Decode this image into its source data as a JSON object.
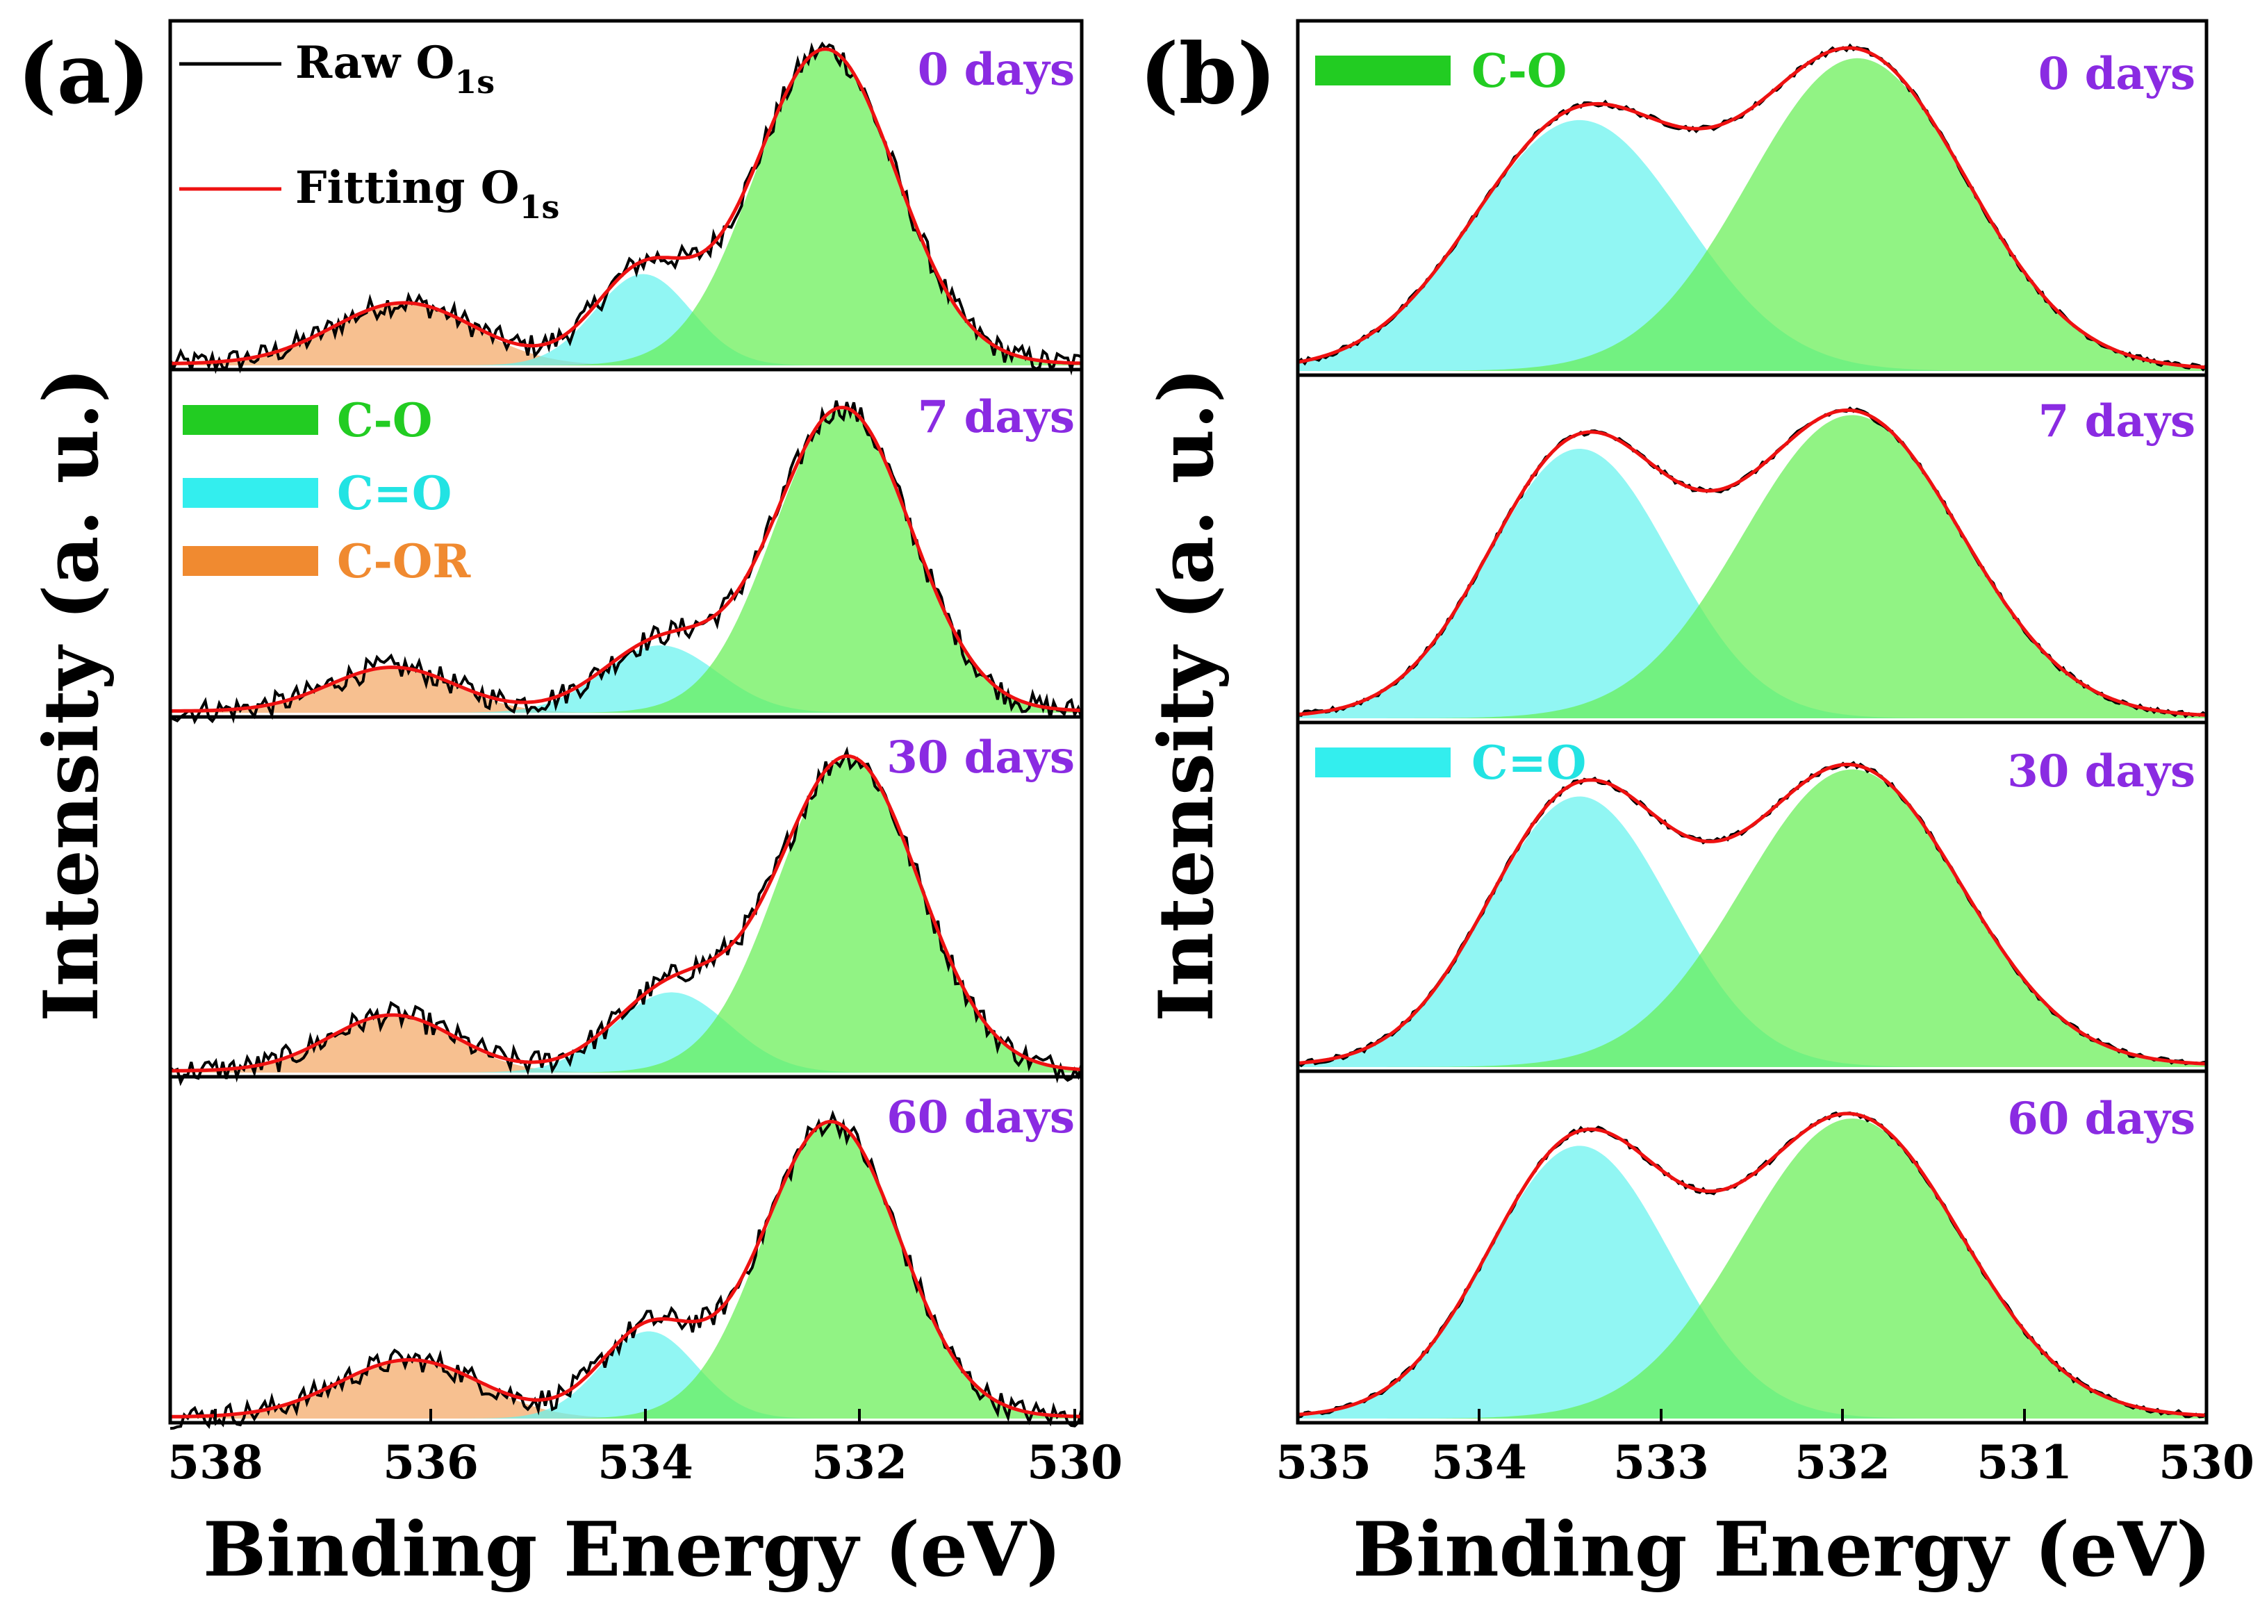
{
  "colors": {
    "co_fill": "#66ee55",
    "cdo_fill": "#66f2ee",
    "cor_fill": "#f4a765",
    "raw_line": "#000000",
    "fit_line": "#ee1111",
    "days_label": "#8a2be2",
    "co_text": "#22cc22",
    "cdo_text": "#22e3e3",
    "cor_text": "#f08a30"
  },
  "chart_data": [
    {
      "id": "a",
      "type": "area",
      "panel_label": "(a)",
      "xlabel": "Binding Energy (eV)",
      "ylabel": "Intensity (a. u.)",
      "xlim": [
        538,
        530
      ],
      "ylim": [
        0,
        1
      ],
      "x_ticks": [
        "538",
        "536",
        "534",
        "532",
        "530"
      ],
      "legend": {
        "raw": {
          "label": "Raw O",
          "sub": "1s"
        },
        "fit": {
          "label": "Fitting O",
          "sub": "1s"
        },
        "co": "C-O",
        "cdo": "C=O",
        "cor": "C-OR"
      },
      "subplots": [
        {
          "days": "0 days",
          "peaks": [
            {
              "name": "C-O",
              "center": 532.25,
              "height": 0.93,
              "sigma": 0.62
            },
            {
              "name": "C=O",
              "center": 533.85,
              "height": 0.27,
              "sigma": 0.42
            },
            {
              "name": "C-OR",
              "center": 535.95,
              "height": 0.18,
              "sigma": 0.62
            }
          ]
        },
        {
          "days": "7 days",
          "peaks": [
            {
              "name": "C-O",
              "center": 532.1,
              "height": 0.9,
              "sigma": 0.6
            },
            {
              "name": "C=O",
              "center": 533.7,
              "height": 0.2,
              "sigma": 0.5
            },
            {
              "name": "C-OR",
              "center": 536.05,
              "height": 0.13,
              "sigma": 0.55
            }
          ]
        },
        {
          "days": "30 days",
          "peaks": [
            {
              "name": "C-O",
              "center": 532.05,
              "height": 0.9,
              "sigma": 0.62
            },
            {
              "name": "C=O",
              "center": 533.6,
              "height": 0.23,
              "sigma": 0.5
            },
            {
              "name": "C-OR",
              "center": 536.05,
              "height": 0.16,
              "sigma": 0.55
            }
          ]
        },
        {
          "days": "60 days",
          "peaks": [
            {
              "name": "C-O",
              "center": 532.2,
              "height": 0.88,
              "sigma": 0.6
            },
            {
              "name": "C=O",
              "center": 533.8,
              "height": 0.26,
              "sigma": 0.42
            },
            {
              "name": "C-OR",
              "center": 535.9,
              "height": 0.17,
              "sigma": 0.62
            }
          ]
        }
      ]
    },
    {
      "id": "b",
      "type": "area",
      "panel_label": "(b)",
      "xlabel": "Binding Energy (eV)",
      "ylabel": "Intensity (a. u.)",
      "xlim": [
        535,
        530
      ],
      "ylim": [
        0,
        1
      ],
      "x_ticks": [
        "535",
        "534",
        "533",
        "532",
        "531",
        "530"
      ],
      "legend": {
        "co": "C-O",
        "cdo": "C=O"
      },
      "subplots": [
        {
          "days": "0 days",
          "peaks": [
            {
              "name": "C-O",
              "center": 531.92,
              "height": 0.91,
              "sigma": 0.6
            },
            {
              "name": "C=O",
              "center": 533.45,
              "height": 0.73,
              "sigma": 0.58
            }
          ]
        },
        {
          "days": "7 days",
          "peaks": [
            {
              "name": "C-O",
              "center": 531.95,
              "height": 0.9,
              "sigma": 0.6
            },
            {
              "name": "C=O",
              "center": 533.45,
              "height": 0.8,
              "sigma": 0.5
            }
          ]
        },
        {
          "days": "30 days",
          "peaks": [
            {
              "name": "C-O",
              "center": 531.95,
              "height": 0.88,
              "sigma": 0.6
            },
            {
              "name": "C=O",
              "center": 533.45,
              "height": 0.8,
              "sigma": 0.5
            }
          ]
        },
        {
          "days": "60 days",
          "peaks": [
            {
              "name": "C-O",
              "center": 531.95,
              "height": 0.88,
              "sigma": 0.6
            },
            {
              "name": "C=O",
              "center": 533.45,
              "height": 0.8,
              "sigma": 0.5
            }
          ]
        }
      ]
    }
  ]
}
